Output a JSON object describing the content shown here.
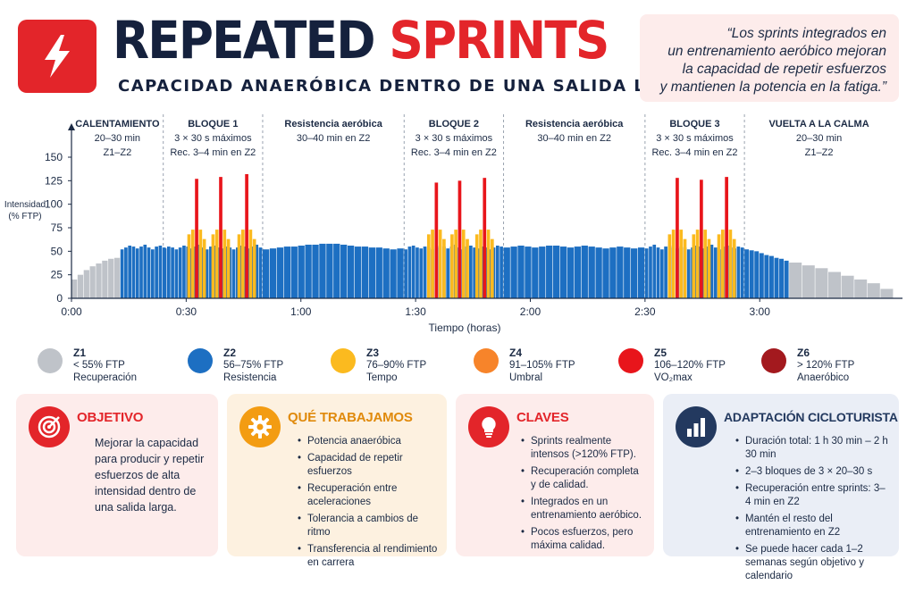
{
  "header": {
    "title_part1": "REPEATED",
    "title_part2": "SPRINTS",
    "subtitle": "CAPACIDAD ANAERÓBICA DENTRO DE UNA SALIDA LARGA",
    "quote_lines": [
      "“Los sprints integrados en",
      "un entrenamiento aeróbico mejoran",
      "la capacidad de repetir esfuerzos",
      "y mantienen la potencia en la fatiga.”"
    ],
    "logo_icon": "lightning-bolt-icon"
  },
  "chart_data": {
    "type": "bar",
    "title": "",
    "xlabel": "Tiempo (horas)",
    "ylabel": "Intensidad\n(% FTP)",
    "ylim": [
      0,
      150
    ],
    "yticks": [
      0,
      25,
      50,
      75,
      100,
      125,
      150
    ],
    "xlim_minutes": [
      0,
      215
    ],
    "xticks": [
      {
        "minutes": 0,
        "label": "0:00"
      },
      {
        "minutes": 30,
        "label": "0:30"
      },
      {
        "minutes": 60,
        "label": "1:00"
      },
      {
        "minutes": 90,
        "label": "1:30"
      },
      {
        "minutes": 120,
        "label": "2:00"
      },
      {
        "minutes": 150,
        "label": "2:30"
      },
      {
        "minutes": 180,
        "label": "3:00"
      }
    ],
    "grid": false,
    "segments": [
      {
        "start": 0,
        "end": 24,
        "lines": [
          "CALENTAMIENTO",
          "20–30 min",
          "Z1–Z2"
        ]
      },
      {
        "start": 24,
        "end": 50,
        "lines": [
          "BLOQUE 1",
          "3 × 30 s máximos",
          "Rec. 3–4 min en Z2"
        ]
      },
      {
        "start": 50,
        "end": 87,
        "lines": [
          "Resistencia aeróbica",
          "30–40 min en Z2"
        ]
      },
      {
        "start": 87,
        "end": 113,
        "lines": [
          "BLOQUE 2",
          "3 × 30 s máximos",
          "Rec. 3–4 min en Z2"
        ]
      },
      {
        "start": 113,
        "end": 150,
        "lines": [
          "Resistencia aeróbica",
          "30–40 min en Z2"
        ]
      },
      {
        "start": 150,
        "end": 176,
        "lines": [
          "BLOQUE 3",
          "3 × 30 s máximos",
          "Rec. 3–4 min en Z2"
        ]
      },
      {
        "start": 176,
        "end": 215,
        "lines": [
          "VUELTA A LA CALMA",
          "20–30 min",
          "Z1–Z2"
        ]
      }
    ],
    "warmup_values": [
      20,
      25,
      30,
      34,
      37,
      40,
      42,
      43
    ],
    "z2_pattern": [
      52,
      54,
      56,
      55,
      53,
      55,
      57,
      54,
      52,
      55,
      56,
      54,
      53,
      55,
      54
    ],
    "aerobic_values": [
      52,
      53,
      54,
      55,
      55,
      56,
      57,
      57,
      58,
      58,
      58,
      57,
      56,
      55,
      55,
      54,
      54,
      53,
      52,
      53
    ],
    "aerobic2_values": [
      54,
      55,
      56,
      55,
      54,
      55,
      56,
      56,
      55,
      54,
      55,
      56,
      55,
      54,
      53,
      54,
      55,
      54,
      53,
      54
    ],
    "cooldown_z2": [
      52,
      51,
      50,
      48,
      46,
      45,
      43,
      42,
      40
    ],
    "cooldown_z1": [
      38,
      35,
      32,
      28,
      24,
      20,
      16,
      10
    ],
    "sprints": [
      {
        "block": 1,
        "minutes": 32.3,
        "value": 127
      },
      {
        "block": 1,
        "minutes": 38.6,
        "value": 129
      },
      {
        "block": 1,
        "minutes": 45.4,
        "value": 132
      },
      {
        "block": 2,
        "minutes": 95.0,
        "value": 123
      },
      {
        "block": 2,
        "minutes": 101.1,
        "value": 125
      },
      {
        "block": 2,
        "minutes": 107.6,
        "value": 128
      },
      {
        "block": 3,
        "minutes": 158.0,
        "value": 128
      },
      {
        "block": 3,
        "minutes": 164.3,
        "value": 126
      },
      {
        "block": 3,
        "minutes": 170.9,
        "value": 129
      }
    ],
    "sprint_shoulder": {
      "z3": 68,
      "z4": 73,
      "after": 63
    },
    "zone_colors": {
      "z1": "#bfc3c9",
      "z2": "#1d6fc2",
      "z3": "#fbba1f",
      "z4": "#f7842a",
      "z5": "#e8151b",
      "z6": "#a3191e"
    }
  },
  "legend": [
    {
      "zone": "Z1",
      "range": "< 55% FTP",
      "name": "Recuperación",
      "color": "#bfc3c9"
    },
    {
      "zone": "Z2",
      "range": "56–75% FTP",
      "name": "Resistencia",
      "color": "#1d6fc2"
    },
    {
      "zone": "Z3",
      "range": "76–90% FTP",
      "name": "Tempo",
      "color": "#fbba1f"
    },
    {
      "zone": "Z4",
      "range": "91–105% FTP",
      "name": "Umbral",
      "color": "#f7842a"
    },
    {
      "zone": "Z5",
      "range": "106–120% FTP",
      "name": "VO₂max",
      "color": "#e8151b"
    },
    {
      "zone": "Z6",
      "range": "> 120% FTP",
      "name": "Anaeróbico",
      "color": "#a3191e"
    }
  ],
  "cards": {
    "objetivo": {
      "title": "OBJETIVO",
      "icon": "target-icon",
      "text": "Mejorar la capacidad para producir y repetir esfuerzos de alta intensidad dentro de una salida larga.",
      "bg": "#fdeceb",
      "accent": "#e3252a"
    },
    "trabajamos": {
      "title": "QUÉ TRABAJAMOS",
      "icon": "gear-icon",
      "items": [
        "Potencia anaeróbica",
        "Capacidad de repetir esfuerzos",
        "Recuperación entre aceleraciones",
        "Tolerancia a cambios de ritmo",
        "Transferencia al rendimiento en carrera"
      ],
      "bg": "#fdf1e0",
      "accent": "#f39c12"
    },
    "claves": {
      "title": "CLAVES",
      "icon": "lightbulb-icon",
      "items": [
        "Sprints realmente intensos (>120% FTP).",
        "Recuperación completa y de calidad.",
        "Integrados en un entrenamiento aeróbico.",
        "Pocos esfuerzos, pero máxima calidad."
      ],
      "bg": "#fdeceb",
      "accent": "#e3252a"
    },
    "adaptacion": {
      "title": "ADAPTACIÓN CICLOTURISTA",
      "icon": "bar-chart-icon",
      "items": [
        "Duración total: 1 h 30 min – 2 h 30 min",
        "2–3 bloques de 3 × 20–30 s",
        "Recuperación entre sprints: 3–4 min en Z2",
        "Mantén el resto del entrenamiento en Z2",
        "Se puede hacer cada 1–2 semanas según objetivo y calendario"
      ],
      "bg": "#eaeef6",
      "accent": "#23395f"
    }
  }
}
